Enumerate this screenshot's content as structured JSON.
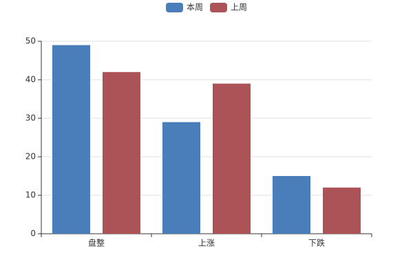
{
  "chart_data": {
    "type": "bar",
    "categories": [
      "盘整",
      "上涨",
      "下跌"
    ],
    "series": [
      {
        "name": "本周",
        "color": "#4a7ebb",
        "values": [
          49,
          29,
          15
        ]
      },
      {
        "name": "上周",
        "color": "#ab5357",
        "values": [
          42,
          39,
          12
        ]
      }
    ],
    "ylim": [
      0,
      50
    ],
    "yticks": [
      0,
      10,
      20,
      30,
      40,
      50
    ],
    "grid": true,
    "legend": "top"
  }
}
